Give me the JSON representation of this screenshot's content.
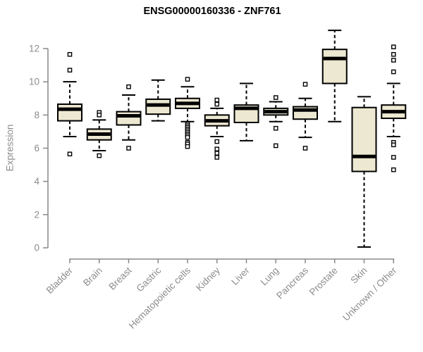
{
  "chart_data": {
    "type": "boxplot",
    "title": "ENSG00000160336 - ZNF761",
    "ylabel": "Expression",
    "xlabel": "",
    "ylim": [
      0,
      13.2
    ],
    "yticks": [
      0,
      2,
      4,
      6,
      8,
      10,
      12
    ],
    "grid": false,
    "legend": false,
    "categories": [
      "Bladder",
      "Brain",
      "Breast",
      "Gastric",
      "Hematopoietic cells",
      "Kidney",
      "Liver",
      "Lung",
      "Pancreas",
      "Prostate",
      "Skin",
      "Unknown / Other"
    ],
    "boxes": [
      {
        "category": "Bladder",
        "whisker_low": 6.7,
        "q1": 7.65,
        "median": 8.35,
        "q3": 8.65,
        "whisker_high": 10.0,
        "outliers": [
          11.65,
          10.7,
          5.65
        ]
      },
      {
        "category": "Brain",
        "whisker_low": 5.85,
        "q1": 6.5,
        "median": 6.85,
        "q3": 7.15,
        "whisker_high": 7.7,
        "outliers": [
          8.15,
          8.0,
          5.55
        ]
      },
      {
        "category": "Breast",
        "whisker_low": 6.5,
        "q1": 7.4,
        "median": 7.95,
        "q3": 8.2,
        "whisker_high": 9.2,
        "outliers": [
          9.7,
          6.0
        ]
      },
      {
        "category": "Gastric",
        "whisker_low": 7.65,
        "q1": 8.05,
        "median": 8.6,
        "q3": 8.95,
        "whisker_high": 10.1,
        "outliers": []
      },
      {
        "category": "Hematopoietic cells",
        "whisker_low": 7.6,
        "q1": 8.4,
        "median": 8.7,
        "q3": 9.0,
        "whisker_high": 9.7,
        "outliers": [
          10.15,
          7.45,
          7.35,
          7.25,
          7.15,
          7.05,
          6.95,
          6.85,
          6.75,
          6.65,
          6.35,
          6.25,
          6.1
        ]
      },
      {
        "category": "Kidney",
        "whisker_low": 6.7,
        "q1": 7.35,
        "median": 7.65,
        "q3": 8.0,
        "whisker_high": 8.4,
        "outliers": [
          8.9,
          8.65,
          6.4,
          5.95,
          5.7,
          5.45
        ]
      },
      {
        "category": "Liver",
        "whisker_low": 6.45,
        "q1": 7.55,
        "median": 8.4,
        "q3": 8.6,
        "whisker_high": 9.9,
        "outliers": []
      },
      {
        "category": "Lung",
        "whisker_low": 7.6,
        "q1": 8.0,
        "median": 8.2,
        "q3": 8.4,
        "whisker_high": 8.8,
        "outliers": [
          9.05,
          7.2,
          6.15
        ]
      },
      {
        "category": "Pancreas",
        "whisker_low": 6.65,
        "q1": 7.75,
        "median": 8.3,
        "q3": 8.5,
        "whisker_high": 9.0,
        "outliers": [
          9.85,
          6.0
        ]
      },
      {
        "category": "Prostate",
        "whisker_low": 7.6,
        "q1": 9.9,
        "median": 11.4,
        "q3": 11.95,
        "whisker_high": 13.1,
        "outliers": []
      },
      {
        "category": "Skin",
        "whisker_low": 0.05,
        "q1": 4.6,
        "median": 5.5,
        "q3": 8.45,
        "whisker_high": 9.1,
        "outliers": []
      },
      {
        "category": "Unknown / Other",
        "whisker_low": 6.7,
        "q1": 7.8,
        "median": 8.2,
        "q3": 8.6,
        "whisker_high": 9.9,
        "outliers": [
          12.1,
          11.65,
          11.3,
          10.6,
          6.35,
          6.2,
          5.45,
          4.7
        ]
      }
    ],
    "colors": {
      "box_fill": "#ede8d1",
      "box_stroke": "#000000",
      "median": "#000000",
      "whisker": "#000000",
      "outlier_fill": "#ffffff",
      "axis": "#888888",
      "tick_label": "#8c8c8c",
      "title": "#000000",
      "background": "#ffffff"
    }
  }
}
